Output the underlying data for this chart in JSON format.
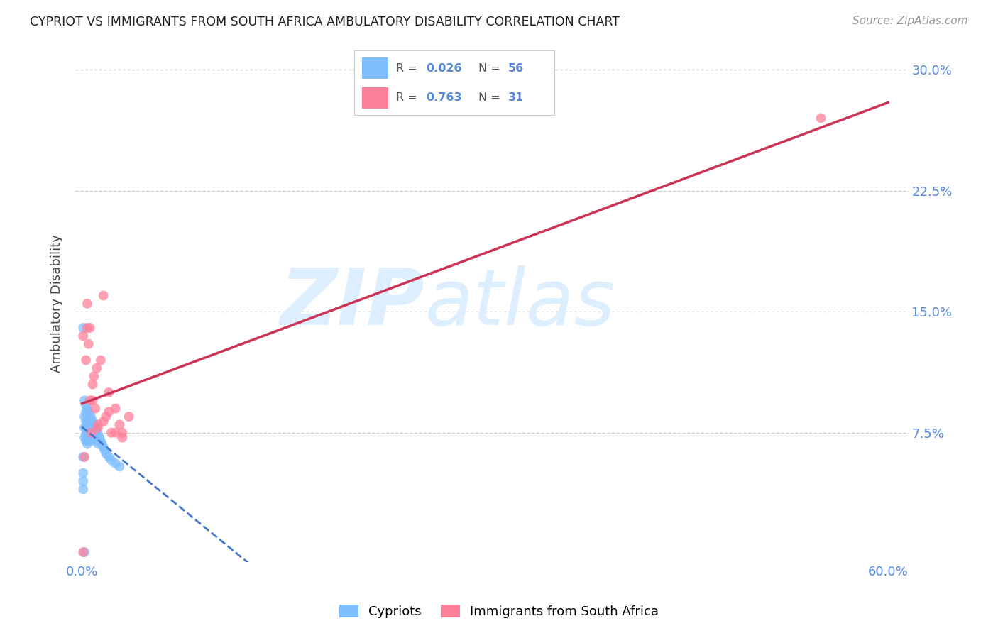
{
  "title": "CYPRIOT VS IMMIGRANTS FROM SOUTH AFRICA AMBULATORY DISABILITY CORRELATION CHART",
  "source": "Source: ZipAtlas.com",
  "tick_color": "#5588dd",
  "ylabel": "Ambulatory Disability",
  "xlim": [
    -0.005,
    0.615
  ],
  "ylim": [
    -0.005,
    0.315
  ],
  "xticks": [
    0.0,
    0.1,
    0.2,
    0.3,
    0.4,
    0.5,
    0.6
  ],
  "yticks": [
    0.075,
    0.15,
    0.225,
    0.3
  ],
  "ytick_labels": [
    "7.5%",
    "15.0%",
    "22.5%",
    "30.0%"
  ],
  "xtick_labels": [
    "0.0%",
    "",
    "",
    "",
    "",
    "",
    "60.0%"
  ],
  "cypriot_color": "#7fbfff",
  "immigrant_color": "#ff8099",
  "trendline_cypriot_color": "#4477cc",
  "trendline_immigrant_color": "#cc3355",
  "watermark_zip": "ZIP",
  "watermark_atlas": "atlas",
  "watermark_color": "#ddeeff",
  "background_color": "#ffffff",
  "grid_color": "#cccccc",
  "cypriot_x": [
    0.001,
    0.001,
    0.002,
    0.002,
    0.002,
    0.002,
    0.003,
    0.003,
    0.003,
    0.003,
    0.003,
    0.003,
    0.004,
    0.004,
    0.004,
    0.004,
    0.004,
    0.004,
    0.005,
    0.005,
    0.005,
    0.005,
    0.005,
    0.006,
    0.006,
    0.006,
    0.006,
    0.007,
    0.007,
    0.007,
    0.007,
    0.008,
    0.008,
    0.008,
    0.009,
    0.009,
    0.01,
    0.01,
    0.011,
    0.011,
    0.012,
    0.012,
    0.013,
    0.014,
    0.015,
    0.016,
    0.017,
    0.018,
    0.02,
    0.022,
    0.025,
    0.028,
    0.002,
    0.001,
    0.001,
    0.001
  ],
  "cypriot_y": [
    0.14,
    0.06,
    0.095,
    0.085,
    0.078,
    0.072,
    0.092,
    0.088,
    0.082,
    0.078,
    0.074,
    0.07,
    0.09,
    0.086,
    0.082,
    0.078,
    0.074,
    0.068,
    0.088,
    0.084,
    0.08,
    0.076,
    0.07,
    0.086,
    0.082,
    0.078,
    0.072,
    0.084,
    0.08,
    0.076,
    0.07,
    0.082,
    0.078,
    0.072,
    0.08,
    0.074,
    0.078,
    0.072,
    0.076,
    0.07,
    0.074,
    0.068,
    0.072,
    0.07,
    0.068,
    0.066,
    0.064,
    0.062,
    0.06,
    0.058,
    0.056,
    0.054,
    0.001,
    0.05,
    0.045,
    0.04
  ],
  "immigrant_x": [
    0.001,
    0.002,
    0.003,
    0.004,
    0.005,
    0.006,
    0.007,
    0.008,
    0.009,
    0.01,
    0.011,
    0.012,
    0.014,
    0.016,
    0.018,
    0.02,
    0.022,
    0.025,
    0.028,
    0.03,
    0.035,
    0.004,
    0.006,
    0.008,
    0.012,
    0.016,
    0.02,
    0.025,
    0.03,
    0.001,
    0.55
  ],
  "immigrant_y": [
    0.001,
    0.06,
    0.12,
    0.14,
    0.13,
    0.095,
    0.075,
    0.105,
    0.11,
    0.09,
    0.115,
    0.08,
    0.12,
    0.16,
    0.085,
    0.1,
    0.075,
    0.09,
    0.08,
    0.075,
    0.085,
    0.155,
    0.14,
    0.095,
    0.078,
    0.082,
    0.088,
    0.075,
    0.072,
    0.135,
    0.27
  ]
}
